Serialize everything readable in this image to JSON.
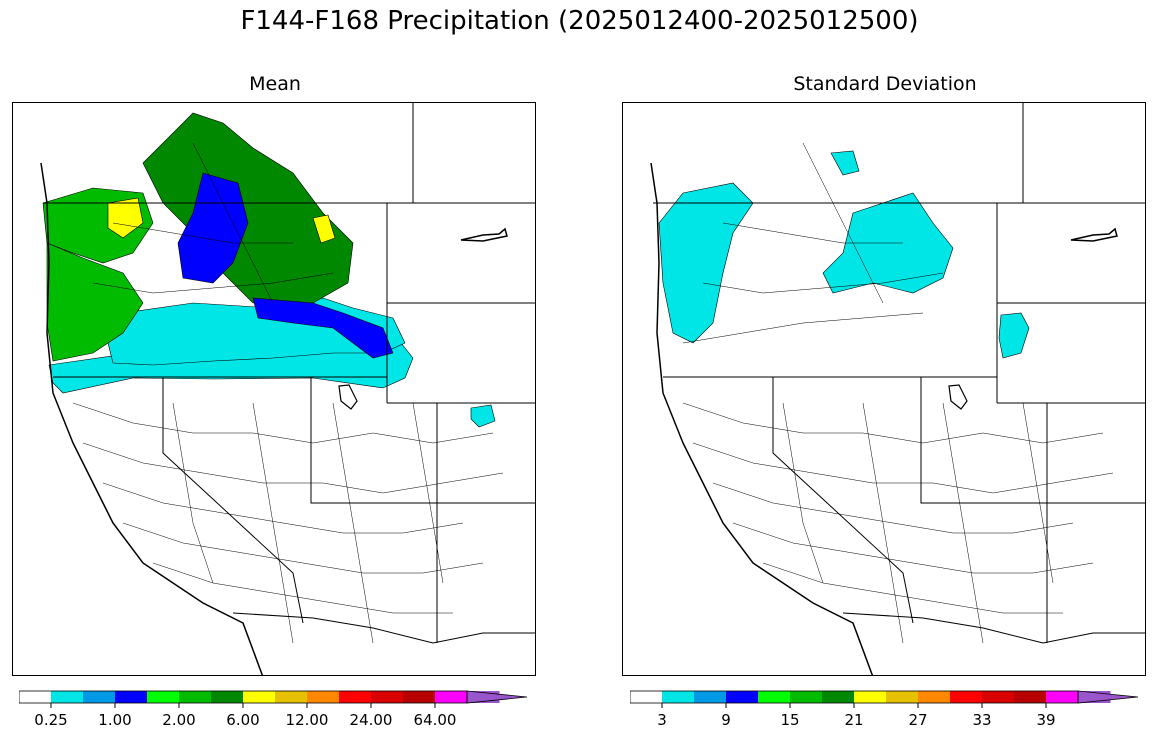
{
  "figure": {
    "title": "F144-F168 Precipitation (2025012400-2025012500)"
  },
  "panels": [
    {
      "title": "Mean",
      "colorbar": {
        "colors": [
          "#ffffff",
          "#00e5e5",
          "#0099e5",
          "#0000ff",
          "#00ff00",
          "#00bb00",
          "#008800",
          "#ffff00",
          "#e5c100",
          "#ff8800",
          "#ff0000",
          "#d80000",
          "#b80000",
          "#ff00ff",
          "#9955cc"
        ],
        "extend": "max",
        "tick_labels": [
          "0.25",
          "1.00",
          "2.00",
          "6.00",
          "12.00",
          "24.00",
          "64.00"
        ]
      },
      "regions": [
        {
          "area": "Washington coast / Olympic Peninsula",
          "color": "#00bb00"
        },
        {
          "area": "Oregon coast and Cascades",
          "color": "#00bb00"
        },
        {
          "area": "Northern Idaho / British Columbia",
          "color": "#008800"
        },
        {
          "area": "Central Washington",
          "color": "#0000ff"
        },
        {
          "area": "Eastern Oregon / southern Idaho",
          "color": "#00e5e5"
        },
        {
          "area": "Puget Sound / Idaho panhandle spots",
          "color": "#ffff00"
        },
        {
          "area": "Northern California / northern Nevada",
          "color": "#00e5e5"
        }
      ]
    },
    {
      "title": "Standard Deviation",
      "colorbar": {
        "colors": [
          "#ffffff",
          "#00e5e5",
          "#0099e5",
          "#0000ff",
          "#00ff00",
          "#00bb00",
          "#008800",
          "#ffff00",
          "#e5c100",
          "#ff8800",
          "#ff0000",
          "#d80000",
          "#b80000",
          "#ff00ff",
          "#9955cc"
        ],
        "extend": "max",
        "tick_labels": [
          "3",
          "9",
          "15",
          "21",
          "27",
          "33",
          "39"
        ]
      },
      "regions": [
        {
          "area": "Washington coast / Cascades",
          "color": "#00e5e5"
        },
        {
          "area": "Idaho panhandle",
          "color": "#00e5e5"
        },
        {
          "area": "Southwest Montana",
          "color": "#00e5e5"
        }
      ]
    }
  ]
}
